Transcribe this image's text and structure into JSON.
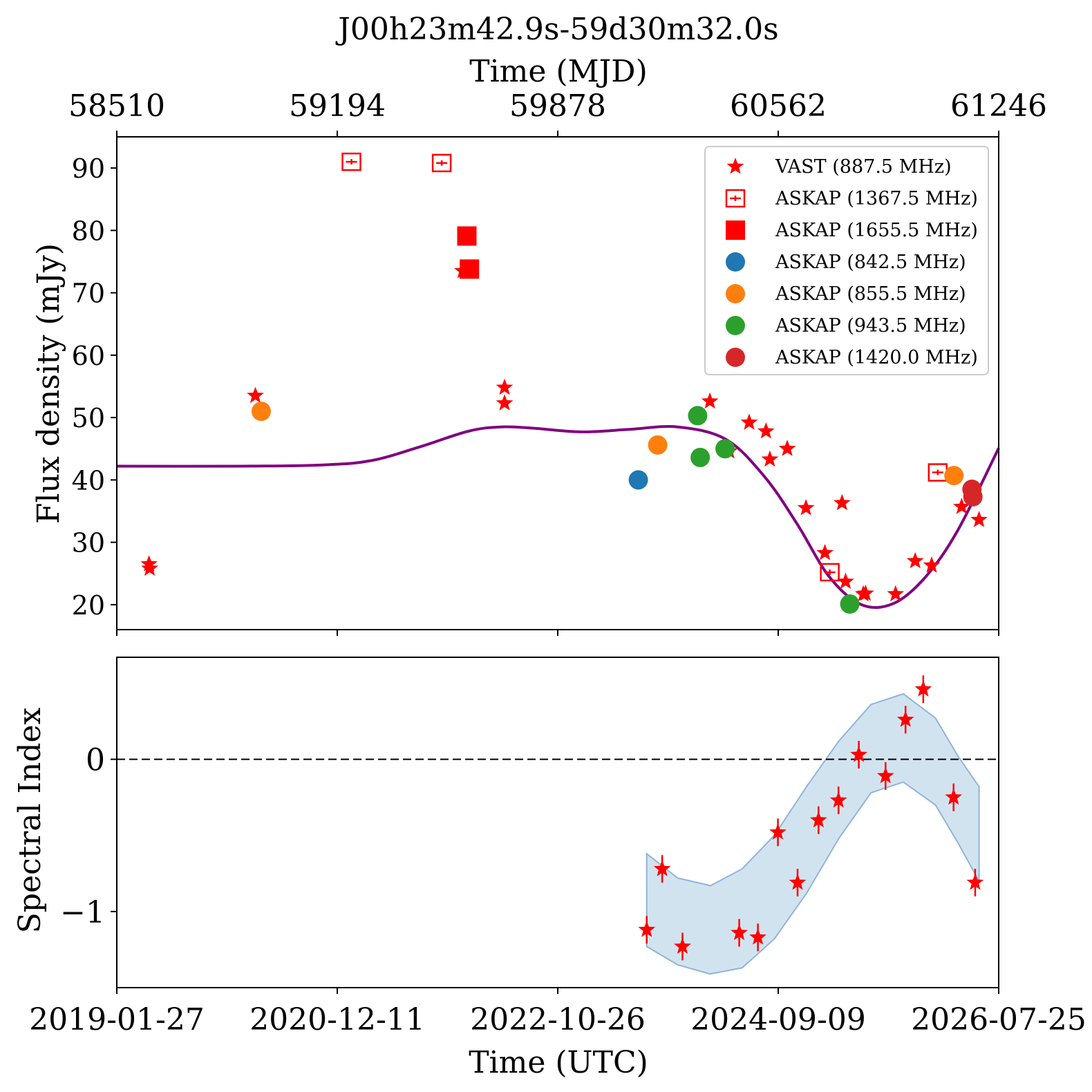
{
  "figure": {
    "title": "J00h23m42.9s-59d30m32.0s",
    "top_axis_label": "Time (MJD)",
    "bottom_axis_label": "Time (UTC)",
    "top_ticks": [
      "58510",
      "59194",
      "59878",
      "60562",
      "61246"
    ],
    "bottom_ticks": [
      "2019-01-27",
      "2020-12-11",
      "2022-10-26",
      "2024-09-09",
      "2026-07-25"
    ]
  },
  "chart_data": [
    {
      "type": "scatter",
      "panel": "flux",
      "ylabel": "Flux density (mJy)",
      "xunit": "MJD",
      "xlim": [
        58510,
        61246
      ],
      "ylim": [
        16,
        95
      ],
      "yticks": [
        "20",
        "30",
        "40",
        "50",
        "60",
        "70",
        "80",
        "90"
      ],
      "legend_position": "upper right",
      "series": [
        {
          "name": "VAST (887.5 MHz)",
          "marker": "star",
          "color": "#ff0000",
          "points": [
            {
              "x": 58610,
              "y": 26.5
            },
            {
              "x": 58612,
              "y": 25.8
            },
            {
              "x": 58940,
              "y": 53.5
            },
            {
              "x": 59583,
              "y": 73.5
            },
            {
              "x": 59713,
              "y": 54.8
            },
            {
              "x": 59713,
              "y": 52.3
            },
            {
              "x": 60760,
              "y": 36.3
            },
            {
              "x": 60350,
              "y": 52.6
            },
            {
              "x": 60410,
              "y": 44.6
            },
            {
              "x": 60472,
              "y": 49.2
            },
            {
              "x": 60524,
              "y": 47.8
            },
            {
              "x": 60536,
              "y": 43.3
            },
            {
              "x": 60590,
              "y": 45.0
            },
            {
              "x": 60648,
              "y": 35.5
            },
            {
              "x": 60707,
              "y": 28.3
            },
            {
              "x": 60771,
              "y": 23.7
            },
            {
              "x": 60833,
              "y": 21.8
            },
            {
              "x": 60826,
              "y": 21.7
            },
            {
              "x": 60926,
              "y": 21.7
            },
            {
              "x": 60987,
              "y": 27.0
            },
            {
              "x": 61038,
              "y": 26.3
            },
            {
              "x": 61131,
              "y": 35.7
            },
            {
              "x": 61185,
              "y": 33.6
            }
          ]
        },
        {
          "name": "ASKAP (1367.5 MHz)",
          "marker": "open-square",
          "color": "#ff0000",
          "points": [
            {
              "x": 59238,
              "y": 91.0
            },
            {
              "x": 59518,
              "y": 90.8
            },
            {
              "x": 60722,
              "y": 25.2
            },
            {
              "x": 61057,
              "y": 41.2
            }
          ]
        },
        {
          "name": "ASKAP (1655.5 MHz)",
          "marker": "filled-square",
          "color": "#ff0000",
          "points": [
            {
              "x": 59596,
              "y": 79.1
            },
            {
              "x": 59604,
              "y": 73.8
            }
          ]
        },
        {
          "name": "ASKAP (842.5 MHz)",
          "marker": "circle",
          "color": "#1f77b4",
          "points": [
            {
              "x": 60128,
              "y": 40.0
            }
          ]
        },
        {
          "name": "ASKAP (855.5 MHz)",
          "marker": "circle",
          "color": "#ff7f0e",
          "points": [
            {
              "x": 58958,
              "y": 51.0
            },
            {
              "x": 60188,
              "y": 45.6
            },
            {
              "x": 61107,
              "y": 40.7
            }
          ]
        },
        {
          "name": "ASKAP (943.5 MHz)",
          "marker": "circle",
          "color": "#2ca02c",
          "points": [
            {
              "x": 60312,
              "y": 50.3
            },
            {
              "x": 60320,
              "y": 43.6
            },
            {
              "x": 60397,
              "y": 45.0
            },
            {
              "x": 60784,
              "y": 20.1
            }
          ]
        },
        {
          "name": "ASKAP (1420.0 MHz)",
          "marker": "circle",
          "color": "#d62728",
          "points": [
            {
              "x": 61163,
              "y": 38.5
            },
            {
              "x": 61166,
              "y": 37.3
            }
          ]
        }
      ],
      "model_curve": {
        "color": "#800080",
        "points": [
          {
            "x": 58510,
            "y": 42.2
          },
          {
            "x": 58900,
            "y": 42.2
          },
          {
            "x": 59150,
            "y": 42.4
          },
          {
            "x": 59300,
            "y": 43.1
          },
          {
            "x": 59450,
            "y": 45.3
          },
          {
            "x": 59600,
            "y": 47.8
          },
          {
            "x": 59700,
            "y": 48.5
          },
          {
            "x": 59800,
            "y": 48.3
          },
          {
            "x": 59950,
            "y": 47.7
          },
          {
            "x": 60100,
            "y": 48.1
          },
          {
            "x": 60250,
            "y": 48.5
          },
          {
            "x": 60400,
            "y": 46.5
          },
          {
            "x": 60520,
            "y": 40.5
          },
          {
            "x": 60620,
            "y": 33.0
          },
          {
            "x": 60720,
            "y": 24.5
          },
          {
            "x": 60820,
            "y": 20.0
          },
          {
            "x": 60920,
            "y": 20.2
          },
          {
            "x": 61020,
            "y": 24.5
          },
          {
            "x": 61120,
            "y": 32.0
          },
          {
            "x": 61246,
            "y": 45.1
          }
        ]
      }
    },
    {
      "type": "scatter",
      "panel": "spectral-index",
      "ylabel": "Spectral Index",
      "xunit": "MJD",
      "xlim": [
        58510,
        61246
      ],
      "ylim": [
        -1.5,
        0.67
      ],
      "yticks": [
        "−1",
        "0"
      ],
      "reference_line": {
        "y": 0,
        "style": "dashed"
      },
      "series": [
        {
          "name": "VAST",
          "marker": "star",
          "color": "#ff0000",
          "points": [
            {
              "x": 60154,
              "y": -1.12
            },
            {
              "x": 60202,
              "y": -0.72
            },
            {
              "x": 60265,
              "y": -1.23
            },
            {
              "x": 60441,
              "y": -1.14
            },
            {
              "x": 60499,
              "y": -1.17
            },
            {
              "x": 60561,
              "y": -0.48
            },
            {
              "x": 60622,
              "y": -0.81
            },
            {
              "x": 60687,
              "y": -0.4
            },
            {
              "x": 60749,
              "y": -0.27
            },
            {
              "x": 60812,
              "y": 0.03
            },
            {
              "x": 60895,
              "y": -0.11
            },
            {
              "x": 60957,
              "y": 0.26
            },
            {
              "x": 61012,
              "y": 0.46
            },
            {
              "x": 61106,
              "y": -0.25
            },
            {
              "x": 61173,
              "y": -0.81
            }
          ]
        }
      ],
      "band": {
        "color": "#b4d0e6",
        "upper": [
          {
            "x": 60154,
            "y": -0.62
          },
          {
            "x": 60250,
            "y": -0.78
          },
          {
            "x": 60352,
            "y": -0.83
          },
          {
            "x": 60450,
            "y": -0.72
          },
          {
            "x": 60550,
            "y": -0.5
          },
          {
            "x": 60650,
            "y": -0.18
          },
          {
            "x": 60750,
            "y": 0.12
          },
          {
            "x": 60850,
            "y": 0.36
          },
          {
            "x": 60950,
            "y": 0.43
          },
          {
            "x": 61050,
            "y": 0.27
          },
          {
            "x": 61120,
            "y": 0.02
          },
          {
            "x": 61185,
            "y": -0.18
          }
        ],
        "lower": [
          {
            "x": 60154,
            "y": -1.23
          },
          {
            "x": 60250,
            "y": -1.35
          },
          {
            "x": 60350,
            "y": -1.41
          },
          {
            "x": 60450,
            "y": -1.37
          },
          {
            "x": 60550,
            "y": -1.18
          },
          {
            "x": 60650,
            "y": -0.88
          },
          {
            "x": 60750,
            "y": -0.52
          },
          {
            "x": 60850,
            "y": -0.22
          },
          {
            "x": 60950,
            "y": -0.15
          },
          {
            "x": 61050,
            "y": -0.3
          },
          {
            "x": 61120,
            "y": -0.55
          },
          {
            "x": 61185,
            "y": -0.8
          }
        ]
      }
    }
  ]
}
